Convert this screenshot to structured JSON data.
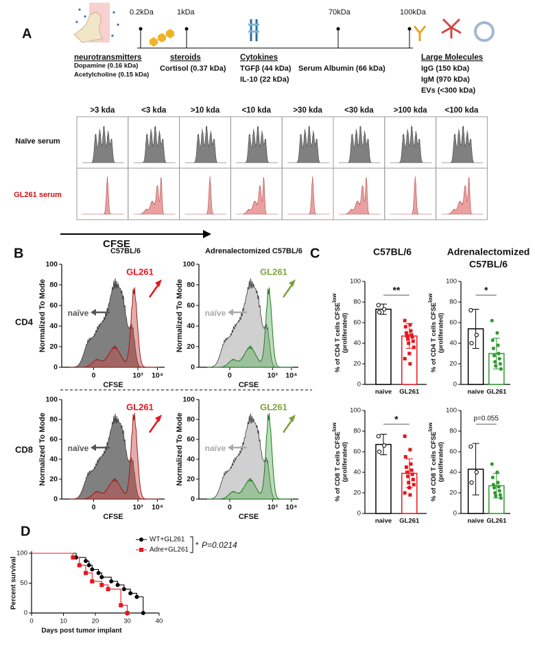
{
  "panel_a": {
    "label": "A",
    "sizes": [
      "0.2kDa",
      "1kDa",
      "70kDa",
      "100kDa"
    ],
    "groups": [
      {
        "title": "neurotransmitters",
        "items": [
          "Dopamine (0.16 kDa)",
          "Acetylcholine (0.15 kDa)"
        ]
      },
      {
        "title": "steroids",
        "items": [
          "Cortisol (0.37 kDa)"
        ]
      },
      {
        "title": "Cytokines",
        "items": [
          "TGFβ (44 kDa)",
          "IL-10 (22 kDa)"
        ]
      },
      {
        "items": [
          "Serum Albumin (66 kDa)"
        ]
      },
      {
        "title": "Large Molecules",
        "items": [
          "IgG (150 kDa)",
          "IgM (970 kDa)",
          "EVs (<300 kDa)"
        ]
      }
    ],
    "fractions": [
      ">3 kda",
      "<3 kda",
      ">10 kda",
      "<10 kda",
      ">30 kda",
      "<30 kda",
      ">100 kda",
      "<100 kda"
    ],
    "rows": [
      "Naïve serum",
      "GL261 serum"
    ],
    "axis_label": "CFSE"
  },
  "panel_b": {
    "label": "B",
    "titles": [
      "C57BL/6",
      "Adrenalectomized  C57BL/6"
    ],
    "rows": [
      "CD4",
      "CD8"
    ],
    "y_label": "Normalized To Mode",
    "x_label": "CFSE",
    "yticks": [
      0,
      20,
      40,
      60,
      80,
      100
    ],
    "ylim": [
      0,
      100
    ],
    "xticks": [
      "0",
      "10³",
      "10⁴"
    ],
    "naive": "naïve",
    "tumor": "GL261"
  },
  "panel_c": {
    "label": "C",
    "titles": [
      "C57BL/6",
      "Adrenalectomized",
      "C57BL/6"
    ]
  },
  "panel_d": {
    "label": "D"
  },
  "chart_data": [
    {
      "type": "bar",
      "y_label": "% of CD4 T cells CFSE",
      "y_label_sup": "low",
      "y_label2": "(proliferated)",
      "categories": [
        "naive",
        "GL261"
      ],
      "values": [
        73,
        47
      ],
      "errors": [
        5,
        12
      ],
      "points": [
        [
          77,
          73,
          70
        ],
        [
          62,
          58,
          56,
          52,
          50,
          48,
          47,
          46,
          44,
          42,
          40,
          36,
          30,
          25,
          20
        ]
      ],
      "colors": [
        "#000000",
        "#e8141c"
      ],
      "ylim": [
        0,
        100
      ],
      "yticks": [
        0,
        20,
        40,
        60,
        80,
        100
      ],
      "significance": "**"
    },
    {
      "type": "bar",
      "y_label": "% of CD4 T cells CFSE",
      "y_label_sup": "low",
      "y_label2": "(proliferated)",
      "categories": [
        "naive",
        "GL261"
      ],
      "values": [
        54,
        30
      ],
      "errors": [
        19,
        15
      ],
      "points": [
        [
          72,
          48,
          40
        ],
        [
          62,
          50,
          43,
          38,
          35,
          30,
          28,
          25,
          22,
          20,
          18,
          15
        ]
      ],
      "colors": [
        "#000000",
        "#2e9a2e"
      ],
      "ylim": [
        0,
        100
      ],
      "yticks": [
        0,
        20,
        40,
        60,
        80,
        100
      ],
      "significance": "*"
    },
    {
      "type": "bar",
      "y_label": "% of CD8 T cells CFSE",
      "y_label_sup": "low",
      "y_label2": "(proliferated)",
      "categories": [
        "naive",
        "GL261"
      ],
      "values": [
        67,
        39
      ],
      "errors": [
        10,
        14
      ],
      "points": [
        [
          75,
          66,
          60
        ],
        [
          75,
          62,
          55,
          48,
          45,
          42,
          40,
          38,
          36,
          33,
          30,
          28,
          25,
          20,
          18
        ]
      ],
      "colors": [
        "#000000",
        "#e8141c"
      ],
      "ylim": [
        0,
        100
      ],
      "yticks": [
        0,
        20,
        40,
        60,
        80,
        100
      ],
      "significance": "*"
    },
    {
      "type": "bar",
      "y_label": "% of CD8 T cells CFSE",
      "y_label_sup": "low",
      "y_label2": "(proliferated)",
      "categories": [
        "naive",
        "GL261"
      ],
      "values": [
        43,
        27
      ],
      "errors": [
        25,
        12
      ],
      "points": [
        [
          65,
          40,
          30
        ],
        [
          48,
          40,
          35,
          30,
          28,
          26,
          25,
          22,
          20,
          18,
          17,
          15
        ]
      ],
      "colors": [
        "#000000",
        "#2e9a2e"
      ],
      "ylim": [
        0,
        100
      ],
      "yticks": [
        0,
        20,
        40,
        60,
        80,
        100
      ],
      "significance": "p=0.055"
    },
    {
      "type": "step",
      "x_label": "Days post tumor implant",
      "y_label": "Percent survival",
      "xlim": [
        0,
        40
      ],
      "xticks": [
        0,
        10,
        20,
        30,
        40
      ],
      "ylim": [
        0,
        100
      ],
      "yticks": [
        0,
        50,
        100
      ],
      "series": [
        {
          "name": "WT+GL261",
          "color": "#000000",
          "marker": "circle",
          "x": [
            0,
            14,
            17,
            18,
            19,
            21,
            22,
            25,
            27,
            29,
            31,
            33,
            35
          ],
          "values": [
            100,
            93,
            87,
            80,
            73,
            67,
            60,
            53,
            47,
            40,
            33,
            27,
            0
          ]
        },
        {
          "name": "Adre+GL261",
          "color": "#e8141c",
          "marker": "square",
          "x": [
            0,
            13,
            15,
            17,
            19,
            22,
            24,
            28,
            30
          ],
          "values": [
            100,
            93,
            80,
            67,
            53,
            47,
            40,
            13,
            0
          ]
        }
      ],
      "annotation": "*",
      "p_label": "P=0.0214"
    }
  ]
}
